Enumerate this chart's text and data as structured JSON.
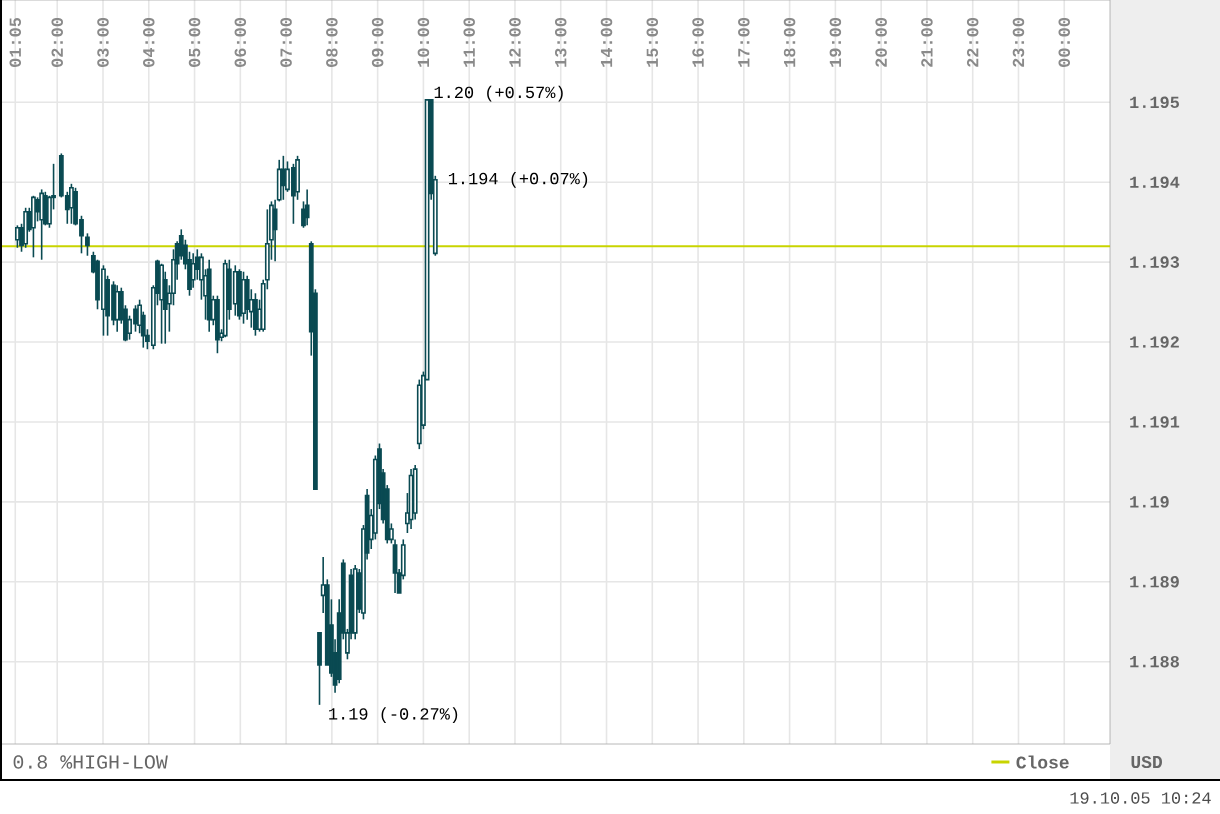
{
  "chart_data": {
    "type": "candlestick",
    "color": "#0a4a52",
    "ylabel": "USD",
    "x": [
      1.13,
      1.22,
      1.31,
      1.39,
      1.48,
      1.57,
      1.66,
      1.74,
      1.83,
      1.92,
      2.09,
      2.22,
      2.31,
      2.4,
      2.53,
      2.66,
      2.79,
      2.88,
      3.01,
      3.1,
      3.23,
      3.31,
      3.4,
      3.49,
      3.58,
      3.71,
      3.8,
      3.88,
      3.97,
      4.1,
      4.19,
      4.28,
      4.36,
      4.45,
      4.54,
      4.62,
      4.71,
      4.8,
      4.89,
      4.97,
      5.06,
      5.15,
      5.24,
      5.32,
      5.41,
      5.5,
      5.59,
      5.67,
      5.76,
      5.89,
      5.98,
      6.07,
      6.15,
      6.24,
      6.33,
      6.42,
      6.5,
      6.59,
      6.68,
      6.76,
      6.85,
      6.94,
      7.03,
      7.16,
      7.25,
      7.38,
      7.46,
      7.55,
      7.64,
      7.73,
      7.81,
      7.9,
      7.99,
      8.07,
      8.16,
      8.25,
      8.34,
      8.42,
      8.51,
      8.6,
      8.69,
      8.77,
      8.86,
      8.95,
      9.04,
      9.12,
      9.21,
      9.3,
      9.38,
      9.47,
      9.56,
      9.65,
      9.73,
      9.82,
      9.91,
      10.0,
      10.08,
      10.17,
      10.26
    ],
    "ohlc": [
      [
        1.19328,
        1.19346,
        1.19318,
        1.19343
      ],
      [
        1.19343,
        1.19348,
        1.19313,
        1.19321
      ],
      [
        1.19323,
        1.19368,
        1.19318,
        1.19363
      ],
      [
        1.19363,
        1.19368,
        1.19338,
        1.19341
      ],
      [
        1.19343,
        1.19383,
        1.19306,
        1.19381
      ],
      [
        1.19378,
        1.19381,
        1.19351,
        1.19363
      ],
      [
        1.19353,
        1.19391,
        1.19303,
        1.19386
      ],
      [
        1.19383,
        1.19388,
        1.19346,
        1.19348
      ],
      [
        1.19348,
        1.19383,
        1.19343,
        1.19381
      ],
      [
        1.19381,
        1.19423,
        1.19366,
        1.19383
      ],
      [
        1.19433,
        1.19436,
        1.19381,
        1.19383
      ],
      [
        1.19383,
        1.19388,
        1.19348,
        1.19366
      ],
      [
        1.19368,
        1.19398,
        1.19348,
        1.19393
      ],
      [
        1.19388,
        1.19393,
        1.19346,
        1.19348
      ],
      [
        1.19353,
        1.19358,
        1.19311,
        1.19333
      ],
      [
        1.19331,
        1.19336,
        1.19308,
        1.19321
      ],
      [
        1.19308,
        1.19313,
        1.19286,
        1.19288
      ],
      [
        1.19301,
        1.19303,
        1.19241,
        1.19253
      ],
      [
        1.19241,
        1.19296,
        1.19208,
        1.19291
      ],
      [
        1.19278,
        1.19283,
        1.19208,
        1.19233
      ],
      [
        1.19271,
        1.19276,
        1.19221,
        1.19228
      ],
      [
        1.19228,
        1.19271,
        1.19213,
        1.19263
      ],
      [
        1.19263,
        1.19268,
        1.19223,
        1.19228
      ],
      [
        1.19241,
        1.19246,
        1.19201,
        1.19203
      ],
      [
        1.19211,
        1.19233,
        1.19203,
        1.19228
      ],
      [
        1.19241,
        1.19246,
        1.19213,
        1.19223
      ],
      [
        1.19221,
        1.19253,
        1.19211,
        1.19246
      ],
      [
        1.19233,
        1.19238,
        1.19193,
        1.19208
      ],
      [
        1.19208,
        1.19216,
        1.19191,
        1.19201
      ],
      [
        1.19196,
        1.19271,
        1.19191,
        1.19268
      ],
      [
        1.19301,
        1.19303,
        1.19246,
        1.19261
      ],
      [
        1.19253,
        1.19298,
        1.19198,
        1.19296
      ],
      [
        1.19278,
        1.19288,
        1.19198,
        1.19241
      ],
      [
        1.19248,
        1.19271,
        1.19213,
        1.19261
      ],
      [
        1.19261,
        1.19316,
        1.19246,
        1.19303
      ],
      [
        1.19323,
        1.19326,
        1.19278,
        1.19298
      ],
      [
        1.19333,
        1.19341,
        1.19303,
        1.19308
      ],
      [
        1.19321,
        1.19328,
        1.19291,
        1.19298
      ],
      [
        1.19303,
        1.19313,
        1.19258,
        1.19266
      ],
      [
        1.19278,
        1.19311,
        1.19268,
        1.19298
      ],
      [
        1.19306,
        1.19316,
        1.19278,
        1.19291
      ],
      [
        1.19278,
        1.19311,
        1.19253,
        1.19306
      ],
      [
        1.19258,
        1.19291,
        1.19228,
        1.19283
      ],
      [
        1.19291,
        1.19303,
        1.19213,
        1.19228
      ],
      [
        1.19228,
        1.19258,
        1.19221,
        1.19253
      ],
      [
        1.19253,
        1.19258,
        1.19186,
        1.19203
      ],
      [
        1.19206,
        1.19216,
        1.19201,
        1.19211
      ],
      [
        1.19208,
        1.19303,
        1.19206,
        1.19298
      ],
      [
        1.19291,
        1.19303,
        1.19228,
        1.19241
      ],
      [
        1.19248,
        1.19296,
        1.19233,
        1.19288
      ],
      [
        1.19288,
        1.19291,
        1.19228,
        1.19233
      ],
      [
        1.19236,
        1.19288,
        1.19223,
        1.19278
      ],
      [
        1.19278,
        1.19283,
        1.19228,
        1.19241
      ],
      [
        1.19238,
        1.19266,
        1.19218,
        1.19253
      ],
      [
        1.19253,
        1.19261,
        1.19208,
        1.19216
      ],
      [
        1.19216,
        1.19253,
        1.19213,
        1.19241
      ],
      [
        1.19216,
        1.19278,
        1.19213,
        1.19273
      ],
      [
        1.19278,
        1.19366,
        1.19266,
        1.19323
      ],
      [
        1.19328,
        1.19376,
        1.19303,
        1.19371
      ],
      [
        1.19366,
        1.19378,
        1.19301,
        1.19341
      ],
      [
        1.19378,
        1.19428,
        1.19376,
        1.19416
      ],
      [
        1.19416,
        1.19433,
        1.19378,
        1.19396
      ],
      [
        1.19391,
        1.19426,
        1.19388,
        1.19416
      ],
      [
        1.19418,
        1.19423,
        1.19348,
        1.19383
      ],
      [
        1.19388,
        1.19433,
        1.19378,
        1.19428
      ],
      [
        1.19366,
        1.19376,
        1.19343,
        1.19346
      ],
      [
        1.19371,
        1.19391,
        1.19346,
        1.19356
      ],
      [
        1.19323,
        1.19326,
        1.19183,
        1.19213
      ],
      [
        1.19261,
        1.19266,
        1.19016,
        1.19016
      ],
      [
        1.18836,
        1.18836,
        1.18746,
        1.18796
      ],
      [
        1.18883,
        1.18931,
        1.18861,
        1.18896
      ],
      [
        1.18896,
        1.18903,
        1.18796,
        1.18796
      ],
      [
        1.18846,
        1.18878,
        1.18781,
        1.18786
      ],
      [
        1.18811,
        1.18828,
        1.18761,
        1.18771
      ],
      [
        1.18861,
        1.18878,
        1.18773,
        1.18778
      ],
      [
        1.18923,
        1.18928,
        1.18828,
        1.18836
      ],
      [
        1.18811,
        1.18841,
        1.18803,
        1.18836
      ],
      [
        1.18908,
        1.18916,
        1.18828,
        1.18836
      ],
      [
        1.18836,
        1.18921,
        1.18828,
        1.18916
      ],
      [
        1.18911,
        1.18916,
        1.18861,
        1.18866
      ],
      [
        1.18861,
        1.18971,
        1.18853,
        1.18966
      ],
      [
        1.19008,
        1.19016,
        1.18928,
        1.18936
      ],
      [
        1.18953,
        1.18991,
        1.18941,
        1.18983
      ],
      [
        1.18961,
        1.19058,
        1.18953,
        1.19053
      ],
      [
        1.19066,
        1.19073,
        1.18991,
        1.18998
      ],
      [
        1.19036,
        1.19041,
        1.18973,
        1.18978
      ],
      [
        1.19016,
        1.19021,
        1.18948,
        1.18953
      ],
      [
        1.18953,
        1.18973,
        1.18948,
        1.18966
      ],
      [
        1.18946,
        1.18953,
        1.18886,
        1.18911
      ],
      [
        1.18911,
        1.18916,
        1.18886,
        1.18886
      ],
      [
        1.18908,
        1.18953,
        1.18903,
        1.18946
      ],
      [
        1.18973,
        1.19011,
        1.18961,
        1.18986
      ],
      [
        1.18978,
        1.19041,
        1.18966,
        1.19033
      ],
      [
        1.18986,
        1.19046,
        1.18978,
        1.19041
      ],
      [
        1.19073,
        1.19153,
        1.19066,
        1.19146
      ],
      [
        1.19096,
        1.19163,
        1.19091,
        1.19158
      ],
      [
        1.19153,
        1.19503,
        1.19153,
        1.19503
      ],
      [
        1.19503,
        1.19503,
        1.19378,
        1.19386
      ],
      [
        1.19311,
        1.19408,
        1.19308,
        1.19403
      ]
    ],
    "xlim": [
      0.75,
      25
    ],
    "ylim": [
      1.18697,
      1.19628
    ],
    "xticks": [
      {
        "value": 1.0833,
        "label": "01:05"
      },
      {
        "value": 2,
        "label": "02:00"
      },
      {
        "value": 3,
        "label": "03:00"
      },
      {
        "value": 4,
        "label": "04:00"
      },
      {
        "value": 5,
        "label": "05:00"
      },
      {
        "value": 6,
        "label": "06:00"
      },
      {
        "value": 7,
        "label": "07:00"
      },
      {
        "value": 8,
        "label": "08:00"
      },
      {
        "value": 9,
        "label": "09:00"
      },
      {
        "value": 10,
        "label": "10:00"
      },
      {
        "value": 11,
        "label": "11:00"
      },
      {
        "value": 12,
        "label": "12:00"
      },
      {
        "value": 13,
        "label": "13:00"
      },
      {
        "value": 14,
        "label": "14:00"
      },
      {
        "value": 15,
        "label": "15:00"
      },
      {
        "value": 16,
        "label": "16:00"
      },
      {
        "value": 17,
        "label": "17:00"
      },
      {
        "value": 18,
        "label": "18:00"
      },
      {
        "value": 19,
        "label": "19:00"
      },
      {
        "value": 20,
        "label": "20:00"
      },
      {
        "value": 21,
        "label": "21:00"
      },
      {
        "value": 22,
        "label": "22:00"
      },
      {
        "value": 23,
        "label": "23:00"
      },
      {
        "value": 24,
        "label": "00:00"
      }
    ],
    "yticks": [
      1.188,
      1.189,
      1.19,
      1.191,
      1.192,
      1.193,
      1.194,
      1.195
    ],
    "grid": true,
    "legend": "bottom right",
    "ref_lines": [
      {
        "axis": "y",
        "value": 1.1932,
        "label": "Close",
        "color": "#c8d400"
      }
    ],
    "annotations": [
      {
        "text": "1.20 (+0.57%)",
        "x": 10.08,
        "y": 1.19503
      },
      {
        "text": "1.194 (+0.07%)",
        "x": 10.26,
        "y": 1.19403
      },
      {
        "text": "1.19 (-0.27%)",
        "x": 7.73,
        "y": 1.18746
      },
      "0.8 %HIGH-LOW",
      "19.10.05 10:24"
    ]
  }
}
